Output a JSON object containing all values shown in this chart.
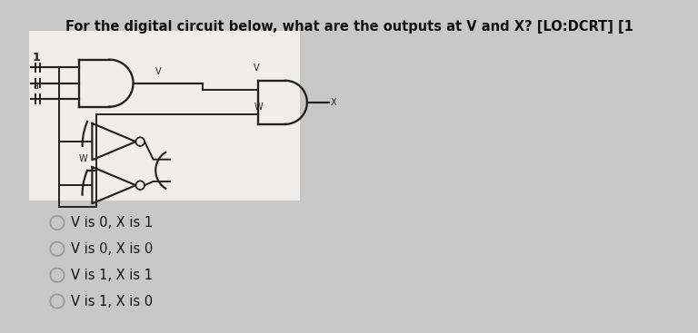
{
  "title": "For the digital circuit below, what are the outputs at V and X? [LO:DCRT] [1",
  "title_fontsize": 10.5,
  "bg_color": "#c8c8c8",
  "circuit_bg": "#f0eeec",
  "options": [
    "V is 0, X is 1",
    "V is 0, X is 0",
    "V is 1, X is 1",
    "V is 1, X is 0"
  ],
  "radio_color": "#999999",
  "text_color": "#111111",
  "option_fontsize": 10.5,
  "line_color": "#222222",
  "lw": 1.4
}
